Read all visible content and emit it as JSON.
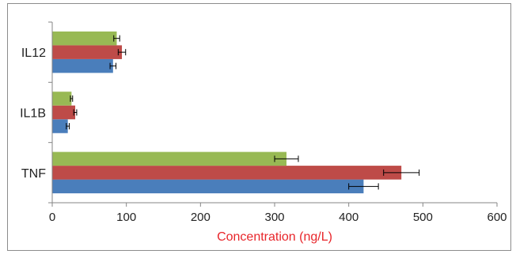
{
  "chart_data": {
    "type": "bar",
    "orientation": "horizontal",
    "categories": [
      "IL12",
      "IL1B",
      "TNF"
    ],
    "series": [
      {
        "values": [
          82,
          21,
          420
        ],
        "errors": [
          4,
          2,
          20
        ],
        "color": "#4a7ebb"
      },
      {
        "values": [
          94,
          31,
          471
        ],
        "errors": [
          5,
          2,
          24
        ],
        "color": "#be4b48"
      },
      {
        "values": [
          87,
          26,
          316
        ],
        "errors": [
          4,
          1.5,
          16
        ],
        "color": "#98b954"
      }
    ],
    "xlabel": "Concentration (ng/L)",
    "xlabel_color": "#e8252a",
    "xlim": [
      0,
      600
    ],
    "xticks": [
      "0",
      "100",
      "200",
      "300",
      "400",
      "500",
      "600"
    ],
    "grid": false
  }
}
